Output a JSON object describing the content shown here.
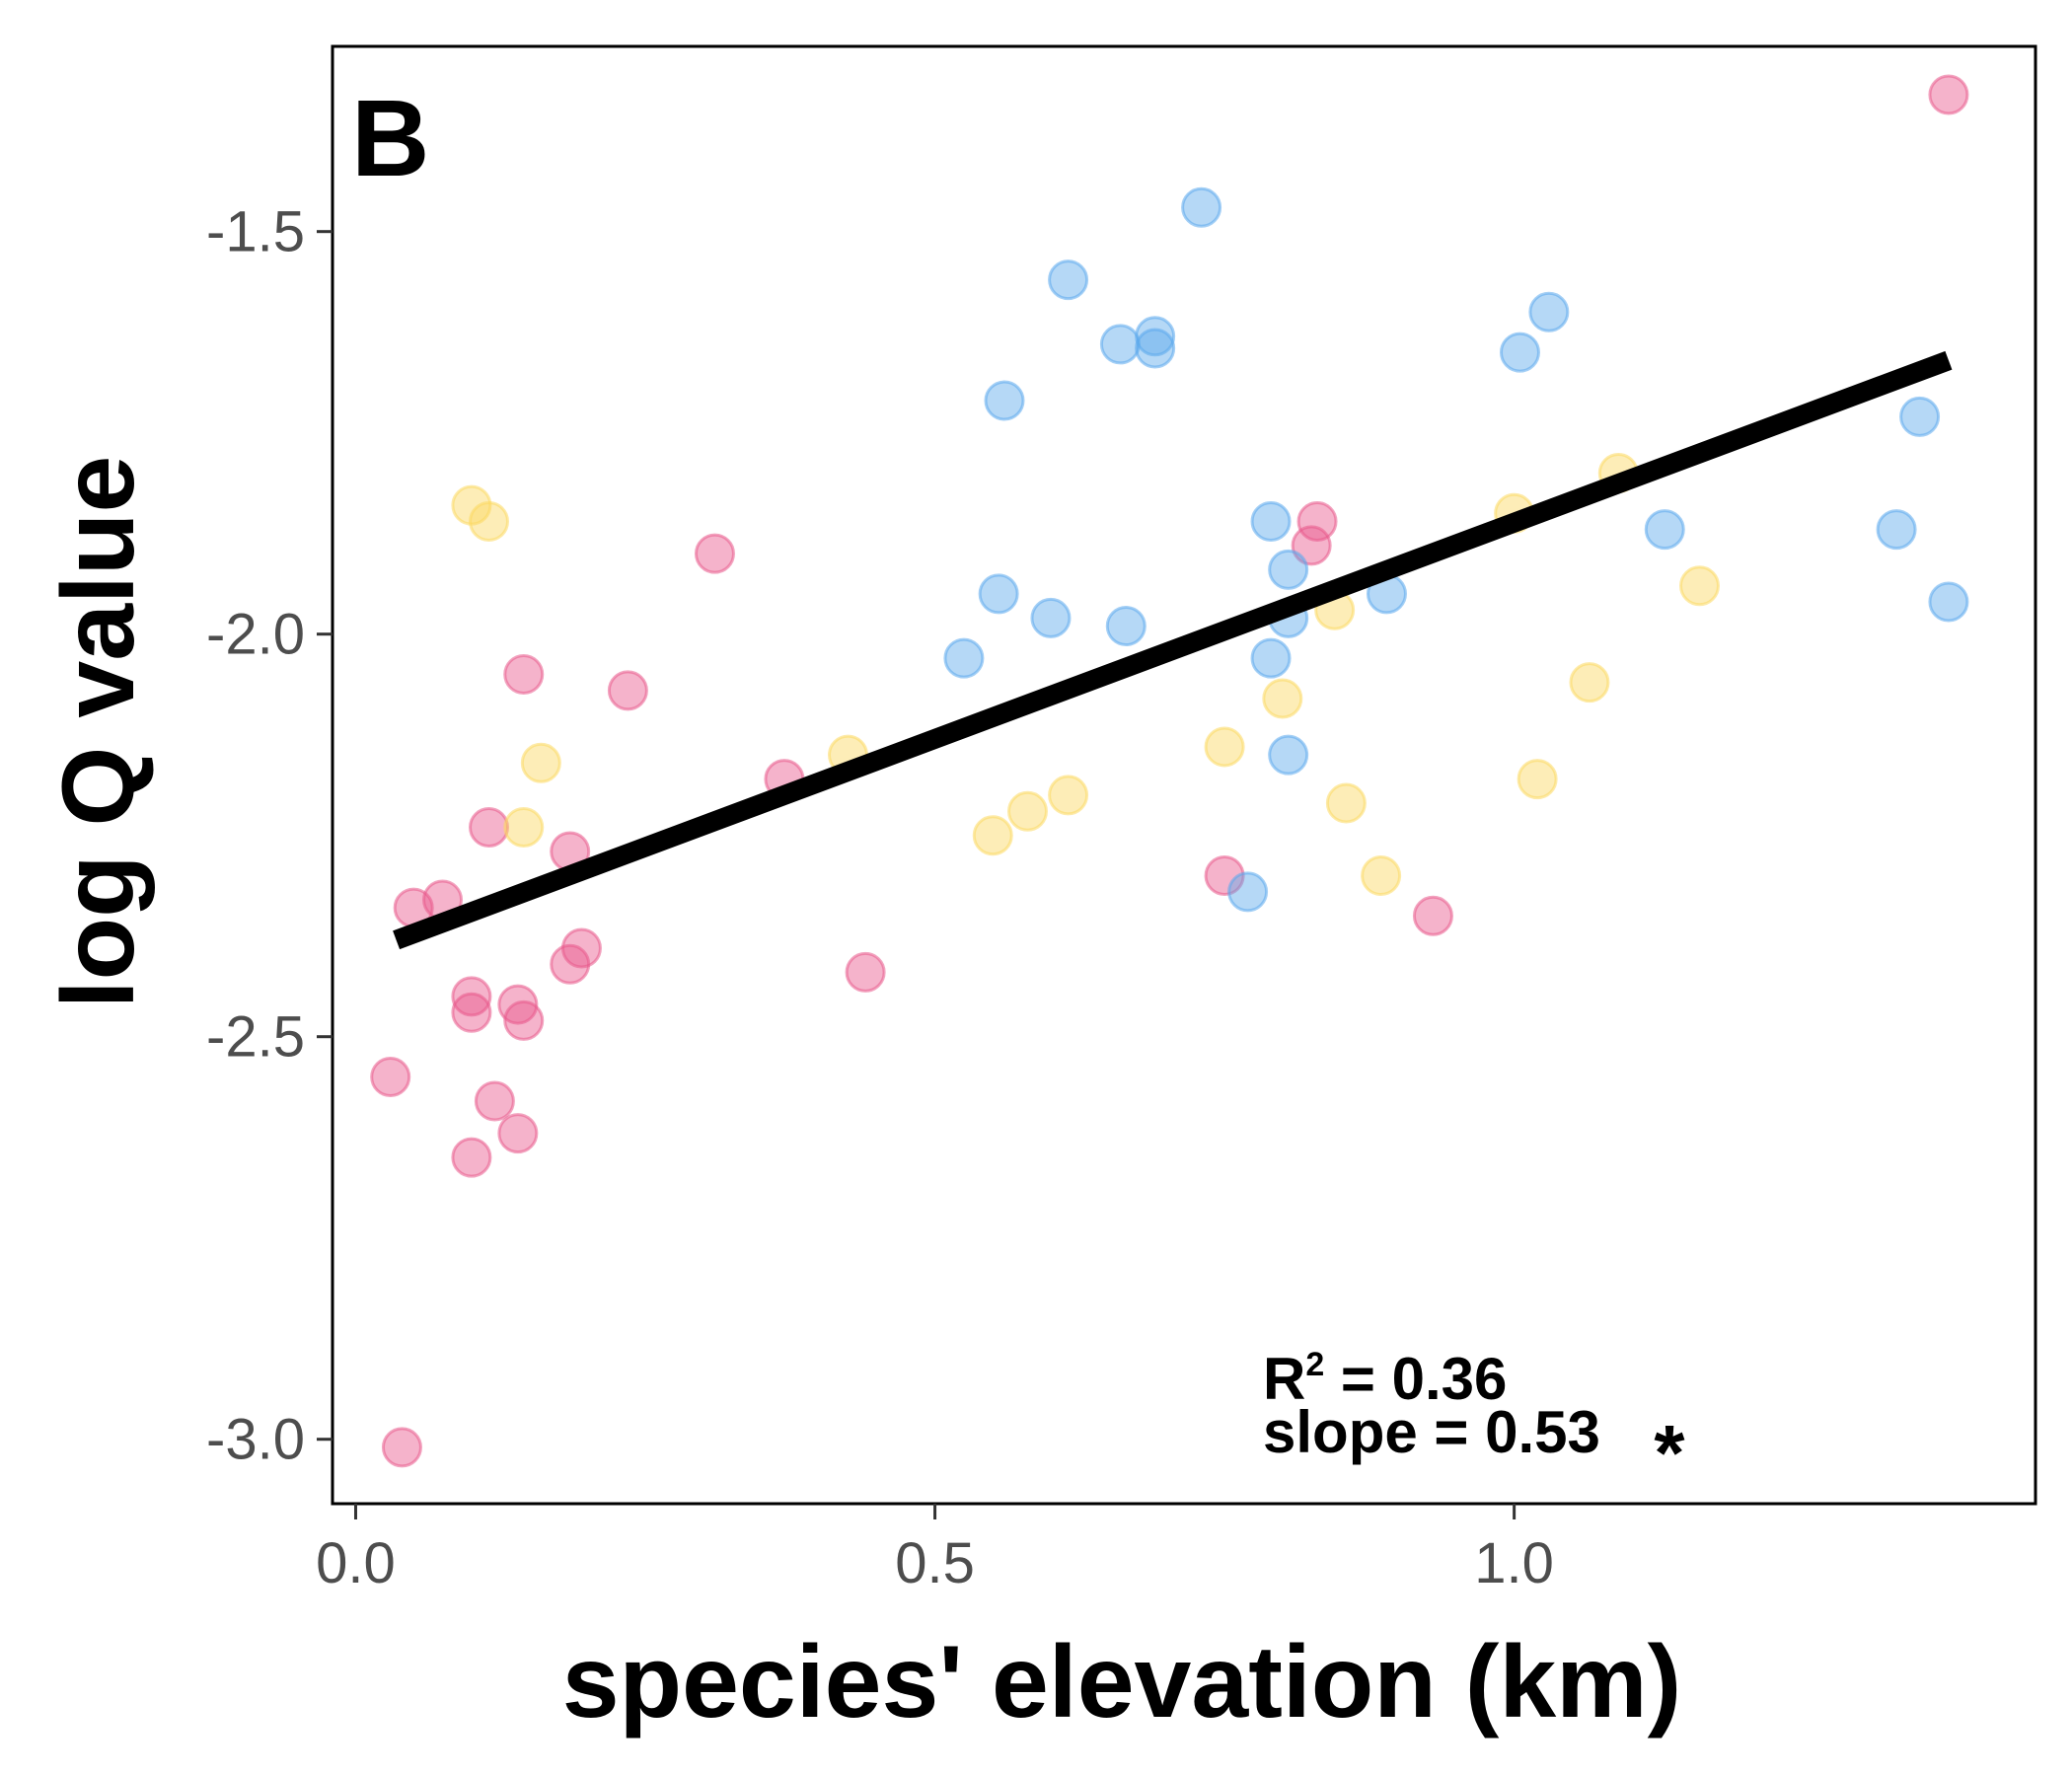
{
  "chart_data": {
    "type": "scatter",
    "panel_label": "B",
    "xlabel": "species' elevation (km)",
    "ylabel": "log Q value",
    "xlim": [
      -0.02,
      1.45
    ],
    "ylim": [
      -3.08,
      -1.27
    ],
    "x_ticks": [
      0.0,
      0.5,
      1.0
    ],
    "x_tick_labels": [
      "0.0",
      "0.5",
      "1.0"
    ],
    "y_ticks": [
      -1.5,
      -2.0,
      -2.5,
      -3.0
    ],
    "y_tick_labels": [
      "-1.5",
      "-2.0",
      "-2.5",
      "-3.0"
    ],
    "grid": false,
    "colors": {
      "pink": "#e8578b",
      "yellow": "#fbd860",
      "blue": "#5aa8ec",
      "fit_line": "#000000"
    },
    "fit_line": {
      "x": [
        0.035,
        1.375
      ],
      "y": [
        -2.38,
        -1.66
      ]
    },
    "annotation": {
      "r2_prefix": "R",
      "r2_superscript": "2",
      "r2_value": " = 0.36",
      "slope_text": "slope = 0.53",
      "significance": "*"
    },
    "series": [
      {
        "color_key": "pink",
        "points": [
          [
            0.04,
            -3.01
          ],
          [
            0.03,
            -2.55
          ],
          [
            0.1,
            -2.65
          ],
          [
            0.12,
            -2.58
          ],
          [
            0.14,
            -2.62
          ],
          [
            0.1,
            -2.45
          ],
          [
            0.1,
            -2.47
          ],
          [
            0.14,
            -2.46
          ],
          [
            0.145,
            -2.48
          ],
          [
            0.05,
            -2.34
          ],
          [
            0.075,
            -2.33
          ],
          [
            0.115,
            -2.24
          ],
          [
            0.185,
            -2.41
          ],
          [
            0.195,
            -2.39
          ],
          [
            0.185,
            -2.27
          ],
          [
            0.145,
            -2.05
          ],
          [
            0.235,
            -2.07
          ],
          [
            0.31,
            -1.9
          ],
          [
            0.37,
            -2.18
          ],
          [
            0.44,
            -2.42
          ],
          [
            0.75,
            -2.3
          ],
          [
            0.83,
            -1.86
          ],
          [
            0.825,
            -1.89
          ],
          [
            0.93,
            -2.35
          ],
          [
            1.375,
            -1.33
          ]
        ]
      },
      {
        "color_key": "yellow",
        "points": [
          [
            0.1,
            -1.84
          ],
          [
            0.115,
            -1.86
          ],
          [
            0.16,
            -2.16
          ],
          [
            0.145,
            -2.24
          ],
          [
            0.425,
            -2.15
          ],
          [
            0.55,
            -2.25
          ],
          [
            0.58,
            -2.22
          ],
          [
            0.615,
            -2.2
          ],
          [
            0.75,
            -2.14
          ],
          [
            0.8,
            -2.08
          ],
          [
            0.845,
            -1.97
          ],
          [
            0.855,
            -2.21
          ],
          [
            0.885,
            -2.3
          ],
          [
            1.0,
            -1.85
          ],
          [
            1.02,
            -2.18
          ],
          [
            1.065,
            -2.06
          ],
          [
            1.09,
            -1.8
          ],
          [
            1.16,
            -1.94
          ]
        ]
      },
      {
        "color_key": "blue",
        "points": [
          [
            0.73,
            -1.47
          ],
          [
            0.615,
            -1.56
          ],
          [
            0.66,
            -1.64
          ],
          [
            0.69,
            -1.63
          ],
          [
            0.69,
            -1.645
          ],
          [
            0.56,
            -1.71
          ],
          [
            0.525,
            -2.03
          ],
          [
            0.555,
            -1.95
          ],
          [
            0.6,
            -1.98
          ],
          [
            0.665,
            -1.99
          ],
          [
            0.79,
            -1.86
          ],
          [
            0.805,
            -1.92
          ],
          [
            0.805,
            -1.98
          ],
          [
            0.79,
            -2.03
          ],
          [
            0.805,
            -2.15
          ],
          [
            0.77,
            -2.32
          ],
          [
            0.89,
            -1.95
          ],
          [
            1.005,
            -1.65
          ],
          [
            1.03,
            -1.6
          ],
          [
            1.13,
            -1.87
          ],
          [
            1.33,
            -1.87
          ],
          [
            1.35,
            -1.73
          ],
          [
            1.375,
            -1.96
          ]
        ]
      }
    ]
  }
}
